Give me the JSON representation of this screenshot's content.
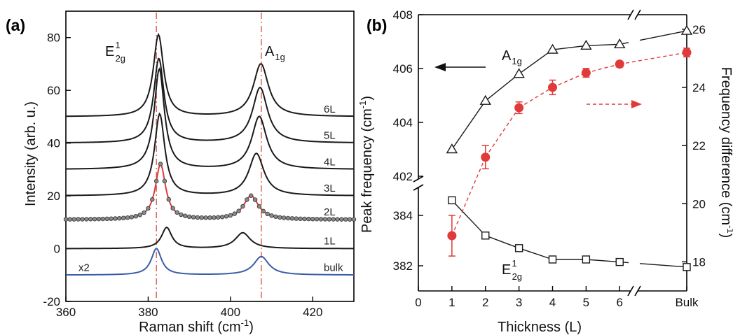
{
  "panel_a_label": "(a)",
  "panel_b_label": "(b)",
  "colors": {
    "black": "#1a1a1a",
    "red": "#e03a3a",
    "blue": "#3a5da8",
    "dashdot": "#d2503c"
  },
  "chart_data": [
    {
      "type": "line",
      "panel": "(a)",
      "xlabel": "Raman shift (cm-1)",
      "ylabel": "Intensity (arb. u.)",
      "xlim": [
        360,
        430
      ],
      "ylim": [
        -20,
        90
      ],
      "xticks": [
        360,
        380,
        400,
        420
      ],
      "yticks": [
        -20,
        0,
        20,
        40,
        60,
        80
      ],
      "grid": false,
      "peak_labels": {
        "e2g_main": "E",
        "e2g_sup": "1",
        "e2g_sub": "2g",
        "a1g_main": "A",
        "a1g_sub": "1g"
      },
      "reference_lines_x": [
        382,
        407.5
      ],
      "series": [
        {
          "name": "6L",
          "baseline": 50,
          "e2g_pos": 382.5,
          "e2g_h": 31,
          "a1g_pos": 407.4,
          "a1g_h": 20,
          "color": "#1a1a1a"
        },
        {
          "name": "5L",
          "baseline": 40,
          "e2g_pos": 382.6,
          "e2g_h": 32,
          "a1g_pos": 407.2,
          "a1g_h": 21,
          "color": "#1a1a1a"
        },
        {
          "name": "4L",
          "baseline": 30,
          "e2g_pos": 382.7,
          "e2g_h": 38,
          "a1g_pos": 407.0,
          "a1g_h": 20,
          "color": "#1a1a1a"
        },
        {
          "name": "3L",
          "baseline": 20,
          "e2g_pos": 382.8,
          "e2g_h": 31,
          "a1g_pos": 406.3,
          "a1g_h": 16,
          "color": "#1a1a1a"
        },
        {
          "name": "2L",
          "baseline": 11,
          "e2g_pos": 383.0,
          "e2g_h": 21,
          "a1g_pos": 405.0,
          "a1g_h": 9,
          "color": "#e03a3a",
          "markers": true
        },
        {
          "name": "1L",
          "baseline": 0,
          "e2g_pos": 384.5,
          "e2g_h": 8,
          "a1g_pos": 403.0,
          "a1g_h": 6,
          "color": "#1a1a1a"
        },
        {
          "name": "bulk",
          "baseline": -10,
          "e2g_pos": 382.0,
          "e2g_h": 10,
          "a1g_pos": 407.5,
          "a1g_h": 7,
          "color": "#3a5da8",
          "annotation": "x2"
        }
      ]
    },
    {
      "type": "scatter",
      "panel": "(b)",
      "xlabel": "Thickness (L)",
      "ylabel_left": "Peak frequency (cm-1)",
      "ylabel_right": "Frequency difference (cm-1)",
      "categories": [
        "0",
        "1",
        "2",
        "3",
        "4",
        "5",
        "6",
        "Bulk"
      ],
      "x": [
        1,
        2,
        3,
        4,
        5,
        6,
        8
      ],
      "left_axis_upper": {
        "ylim": [
          402,
          408
        ],
        "yticks": [
          402,
          404,
          406,
          408
        ]
      },
      "left_axis_lower": {
        "ylim": [
          381,
          385
        ],
        "yticks": [
          382,
          384
        ]
      },
      "right_axis": {
        "ylim": [
          17,
          26.5
        ],
        "yticks": [
          18,
          20,
          22,
          24,
          26
        ]
      },
      "series": [
        {
          "name": "A",
          "name_sub": "1g",
          "axis": "left",
          "marker": "open-triangle",
          "color": "#1a1a1a",
          "values": [
            403.0,
            404.8,
            405.8,
            406.7,
            406.85,
            406.9,
            407.4
          ]
        },
        {
          "name": "E",
          "name_sup": "1",
          "name_sub": "2g",
          "axis": "left",
          "marker": "open-square",
          "color": "#1a1a1a",
          "values": [
            384.6,
            383.2,
            382.7,
            382.25,
            382.25,
            382.15,
            381.95
          ]
        },
        {
          "name": "difference",
          "axis": "right",
          "marker": "filled-circle",
          "dashed": true,
          "color": "#e03a3a",
          "values": [
            18.9,
            21.6,
            23.3,
            24.0,
            24.5,
            24.8,
            25.2
          ],
          "errors": [
            0.7,
            0.4,
            0.2,
            0.25,
            0.15,
            0.1,
            0.15
          ]
        }
      ]
    }
  ]
}
